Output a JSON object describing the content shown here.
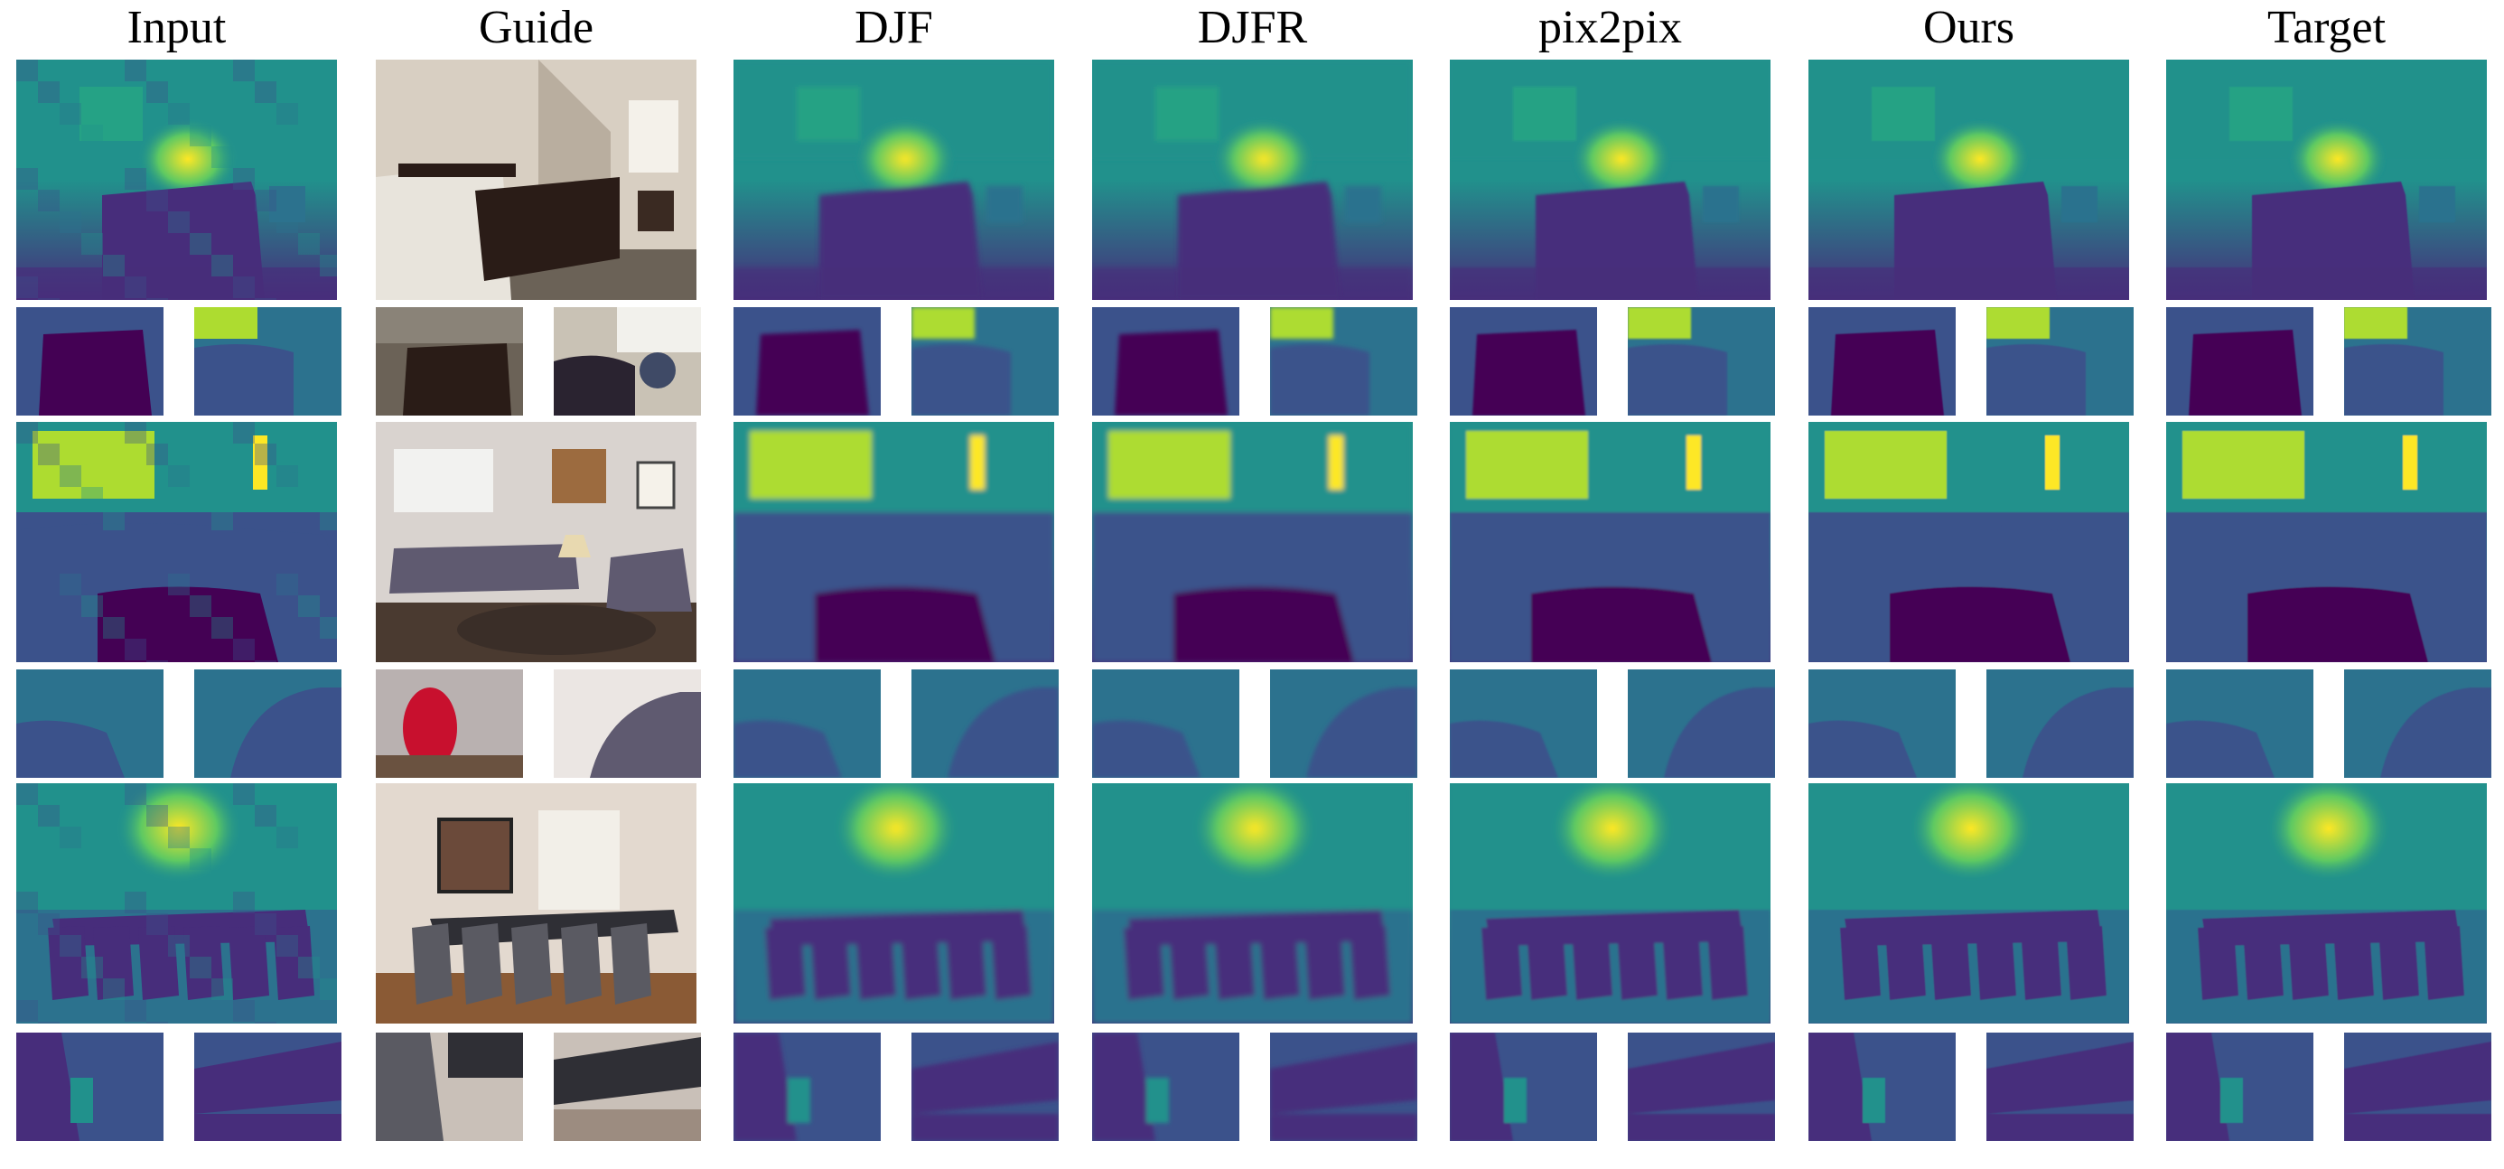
{
  "columns": [
    {
      "label": "Input",
      "kind": "depth",
      "quality": "coarse"
    },
    {
      "label": "Guide",
      "kind": "rgb",
      "quality": "photo"
    },
    {
      "label": "DJF",
      "kind": "depth",
      "quality": "blurred"
    },
    {
      "label": "DJFR",
      "kind": "depth",
      "quality": "blurred"
    },
    {
      "label": "pix2pix",
      "kind": "depth",
      "quality": "noisy"
    },
    {
      "label": "Ours",
      "kind": "depth",
      "quality": "sharp"
    },
    {
      "label": "Target",
      "kind": "depth",
      "quality": "sharp"
    }
  ],
  "scenes": [
    {
      "content": "bedroom",
      "crops": [
        "bed-corner",
        "lamp-and-chair"
      ]
    },
    {
      "content": "living-room",
      "crops": [
        "red-vase",
        "sofa-arm"
      ]
    },
    {
      "content": "dining-room",
      "crops": [
        "chair-backs",
        "table-end"
      ]
    }
  ],
  "colormap": [
    "#440154",
    "#472d7b",
    "#3b528b",
    "#2c728e",
    "#21918c",
    "#28ae80",
    "#5ec962",
    "#addc30",
    "#fde725"
  ],
  "photo_palette": {
    "bedroom": {
      "wall": "#d8cfc2",
      "dark": "#2a1c17",
      "bed": "#e8e4dc",
      "floor": "#6b6257"
    },
    "living-room": {
      "wall": "#d9d3cf",
      "sofa": "#5f5a70",
      "window": "#f2f2f0",
      "floor": "#4a3a30",
      "vase": "#c8102e"
    },
    "dining-room": {
      "wall": "#e3d9cf",
      "table": "#2f2f35",
      "chair": "#5a5a62",
      "floor": "#8a5a35"
    }
  }
}
